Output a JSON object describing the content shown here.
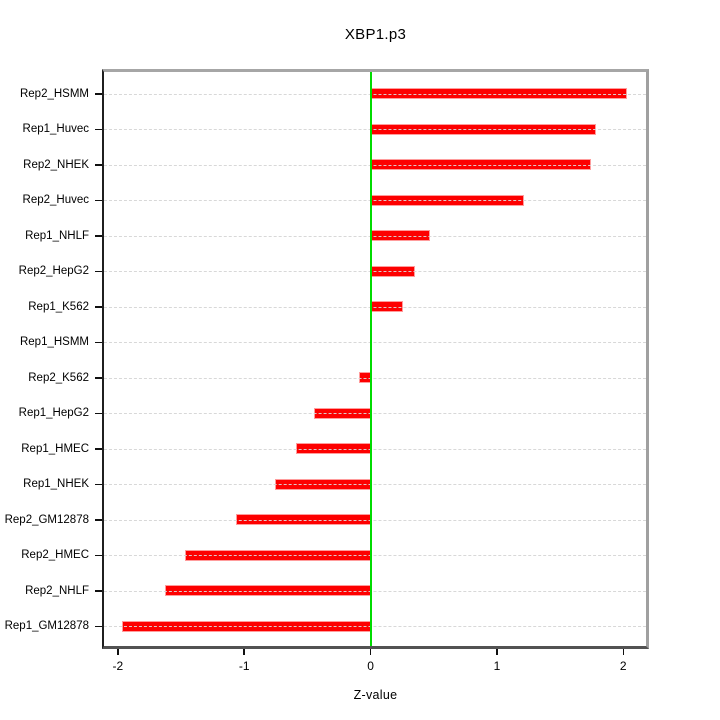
{
  "chart_data": {
    "type": "bar",
    "orientation": "horizontal",
    "title": "XBP1.p3",
    "xlabel": "Z-value",
    "ylabel": "",
    "categories": [
      "Rep2_HSMM",
      "Rep1_Huvec",
      "Rep2_NHEK",
      "Rep2_Huvec",
      "Rep1_NHLF",
      "Rep2_HepG2",
      "Rep1_K562",
      "Rep1_HSMM",
      "Rep2_K562",
      "Rep1_HepG2",
      "Rep1_HMEC",
      "Rep1_NHEK",
      "Rep2_GM12878",
      "Rep2_HMEC",
      "Rep2_NHLF",
      "Rep1_GM12878"
    ],
    "values": [
      2.02,
      1.78,
      1.74,
      1.21,
      0.46,
      0.34,
      0.25,
      0.0,
      -0.08,
      -0.44,
      -0.58,
      -0.75,
      -1.06,
      -1.46,
      -1.62,
      -1.96
    ],
    "xticks": [
      -2,
      -1,
      0,
      1,
      2
    ],
    "xlim": [
      -2.11,
      2.18
    ],
    "grid": "dotted-horizontal",
    "legend": "none",
    "colors": {
      "bar_fill": "#fd0000",
      "bar_border": "#ff9c9c",
      "zero_line": "#00dc00",
      "gridline": "#d6d6d6",
      "text": "#000000"
    }
  }
}
